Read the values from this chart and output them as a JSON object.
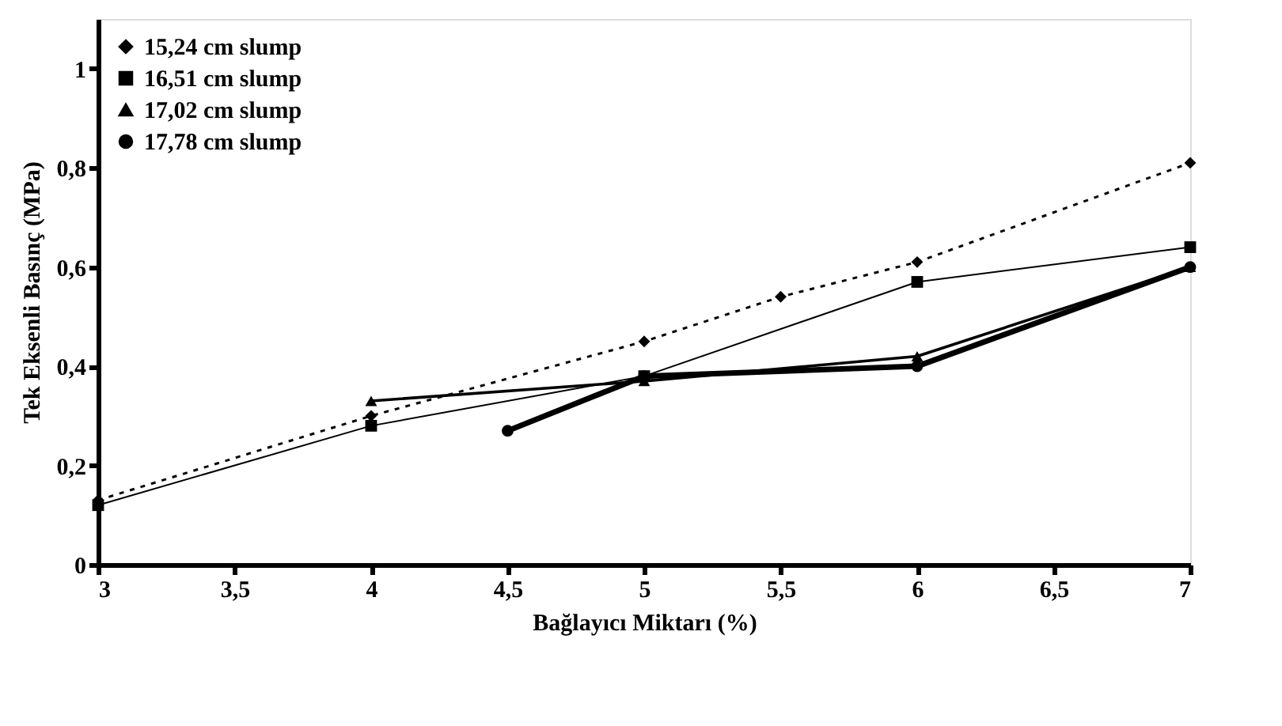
{
  "chart_data": {
    "type": "line",
    "xlabel": "Bağlayıcı Miktarı (%)",
    "ylabel": "Tek Eksenli Basınç (MPa)",
    "xlim": [
      3,
      7
    ],
    "xticks": [
      3,
      {
        "value": 3.5,
        "label": "3,5"
      },
      4,
      {
        "value": 4.5,
        "label": "4,5"
      },
      5,
      {
        "value": 5.5,
        "label": "5,5"
      },
      6,
      {
        "value": 6.5,
        "label": "6,5"
      },
      7
    ],
    "ylim": [
      0,
      1.1
    ],
    "yticks": [
      0,
      {
        "value": 0.2,
        "label": "0,2"
      },
      {
        "value": 0.4,
        "label": "0,4"
      },
      {
        "value": 0.6,
        "label": "0,6"
      },
      {
        "value": 0.8,
        "label": "0,8"
      },
      1
    ],
    "grid": false,
    "legend": "top left",
    "series": [
      {
        "name": "15,24 cm slump",
        "color": "#000000",
        "line_style": "dotted",
        "marker": "diamond",
        "x": [
          3,
          4,
          5,
          5.5,
          6,
          7
        ],
        "values": [
          0.13,
          0.3,
          0.45,
          0.54,
          0.61,
          0.81
        ]
      },
      {
        "name": "16,51 cm slump",
        "color": "#000000",
        "line_style": "solid",
        "marker": "square",
        "x": [
          3,
          4,
          5,
          6,
          7
        ],
        "values": [
          0.12,
          0.28,
          0.38,
          0.57,
          0.64
        ]
      },
      {
        "name": "17,02 cm slump",
        "color": "#000000",
        "line_style": "solid",
        "marker": "triangle",
        "x": [
          4,
          5,
          6,
          7
        ],
        "values": [
          0.33,
          0.37,
          0.42,
          0.6
        ]
      },
      {
        "name": "17,78 cm slump",
        "color": "#000000",
        "line_style": "solid",
        "marker": "circle",
        "x": [
          4.5,
          5,
          6,
          7
        ],
        "values": [
          0.27,
          0.38,
          0.4,
          0.6
        ]
      }
    ]
  }
}
